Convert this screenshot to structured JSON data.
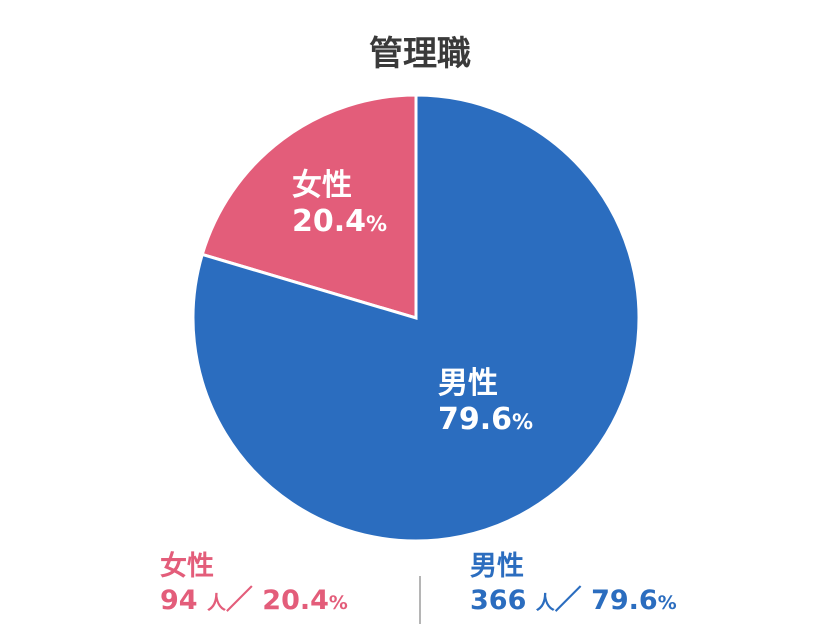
{
  "title": "管理職",
  "colors": {
    "female": "#e35d7a",
    "male": "#2b6dbf",
    "title": "#3a3a3a"
  },
  "chart_data": {
    "type": "pie",
    "title": "管理職",
    "slices": [
      {
        "label": "女性",
        "value": 20.4,
        "count": 94,
        "pct_text": "20.4",
        "color": "#e35d7a"
      },
      {
        "label": "男性",
        "value": 79.6,
        "count": 366,
        "pct_text": "79.6",
        "color": "#2b6dbf"
      }
    ],
    "unit_percent": "%",
    "unit_people": "人",
    "separator": "／"
  },
  "labels": {
    "female": {
      "name": "女性",
      "pct": "20.4"
    },
    "male": {
      "name": "男性",
      "pct": "79.6"
    }
  },
  "legend": {
    "female": {
      "name": "女性",
      "count": "94",
      "pct": "20.4"
    },
    "male": {
      "name": "男性",
      "count": "366",
      "pct": "79.6"
    },
    "people_unit": "人",
    "separator": "／",
    "percent": "%"
  }
}
